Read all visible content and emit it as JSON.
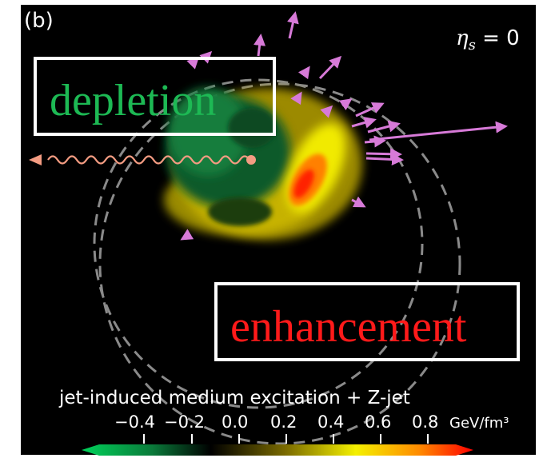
{
  "figure": {
    "panel_label": "(b)",
    "eta_label": "η_s = 0",
    "depletion_label": "depletion",
    "enhancement_label": "enhancement",
    "colorbar_title": "jet-induced medium excitation + Z-jet",
    "colorbar_unit": "GeV/fm³",
    "colorbar_ticks": [
      "−0.4",
      "−0.2",
      "0.0",
      "0.2",
      "0.4",
      "0.6",
      "0.8"
    ],
    "colors": {
      "background": "#000000",
      "depletion_text": "#1db954",
      "enhancement_text": "#ff1a1a",
      "arrow": "#d77ad8",
      "z_boson": "#f49c82"
    }
  }
}
